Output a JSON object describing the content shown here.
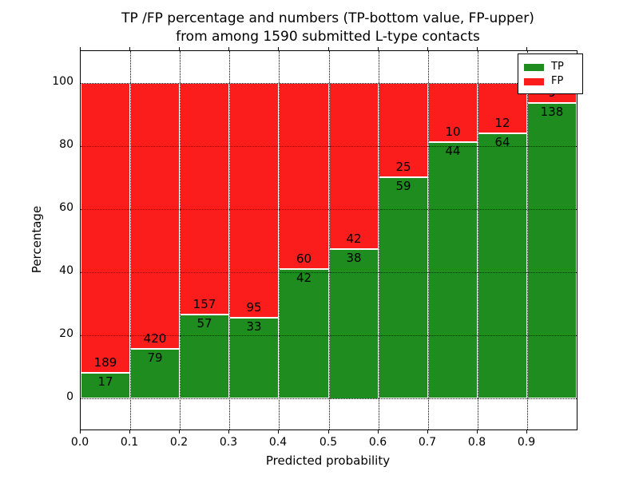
{
  "title": {
    "line1": "TP /FP percentage and numbers (TP-bottom value, FP-upper)",
    "line2": "from among 1590 submitted L-type contacts"
  },
  "axes": {
    "x_label": "Predicted probability",
    "y_label": "Percentage",
    "x_ticks": [
      "0.0",
      "0.1",
      "0.2",
      "0.3",
      "0.4",
      "0.5",
      "0.6",
      "0.7",
      "0.8",
      "0.9"
    ],
    "y_ticks": [
      "0",
      "20",
      "40",
      "60",
      "80",
      "100"
    ],
    "y_tick_values": [
      0,
      20,
      40,
      60,
      80,
      100
    ],
    "x_range": [
      0.0,
      1.0
    ],
    "y_range": [
      -10,
      110
    ]
  },
  "legend": {
    "items": [
      {
        "label": "TP",
        "color": "#1e8c1e"
      },
      {
        "label": "FP",
        "color": "#fb1c1c"
      }
    ],
    "position": "upper right"
  },
  "colors": {
    "tp": "#1e8c1e",
    "fp": "#fb1c1c",
    "grid": "#000000",
    "bar_edge": "#ffffff",
    "background": "#ffffff"
  },
  "chart_data": {
    "type": "bar",
    "stacked": true,
    "title": "TP /FP percentage and numbers (TP-bottom value, FP-upper) from among 1590 submitted L-type contacts",
    "xlabel": "Predicted probability",
    "ylabel": "Percentage",
    "xlim": [
      0.0,
      1.0
    ],
    "ylim": [
      -10,
      110
    ],
    "grid": true,
    "legend_position": "upper right",
    "total_contacts": 1590,
    "series": [
      {
        "name": "TP",
        "color": "#1e8c1e",
        "position": "bottom"
      },
      {
        "name": "FP",
        "color": "#fb1c1c",
        "position": "top"
      }
    ],
    "bins": [
      {
        "range": "0.0-0.1",
        "tp": 17,
        "fp": 189,
        "tp_percent": 8.3
      },
      {
        "range": "0.1-0.2",
        "tp": 79,
        "fp": 420,
        "tp_percent": 15.8
      },
      {
        "range": "0.2-0.3",
        "tp": 57,
        "fp": 157,
        "tp_percent": 26.6
      },
      {
        "range": "0.3-0.4",
        "tp": 33,
        "fp": 95,
        "tp_percent": 25.8
      },
      {
        "range": "0.4-0.5",
        "tp": 42,
        "fp": 60,
        "tp_percent": 41.2
      },
      {
        "range": "0.5-0.6",
        "tp": 38,
        "fp": 42,
        "tp_percent": 47.5
      },
      {
        "range": "0.6-0.7",
        "tp": 59,
        "fp": 25,
        "tp_percent": 70.2
      },
      {
        "range": "0.7-0.8",
        "tp": 44,
        "fp": 10,
        "tp_percent": 81.5
      },
      {
        "range": "0.8-0.9",
        "tp": 64,
        "fp": 12,
        "tp_percent": 84.2
      },
      {
        "range": "0.9-1.0",
        "tp": 138,
        "fp": 9,
        "tp_percent": 93.9
      }
    ]
  }
}
